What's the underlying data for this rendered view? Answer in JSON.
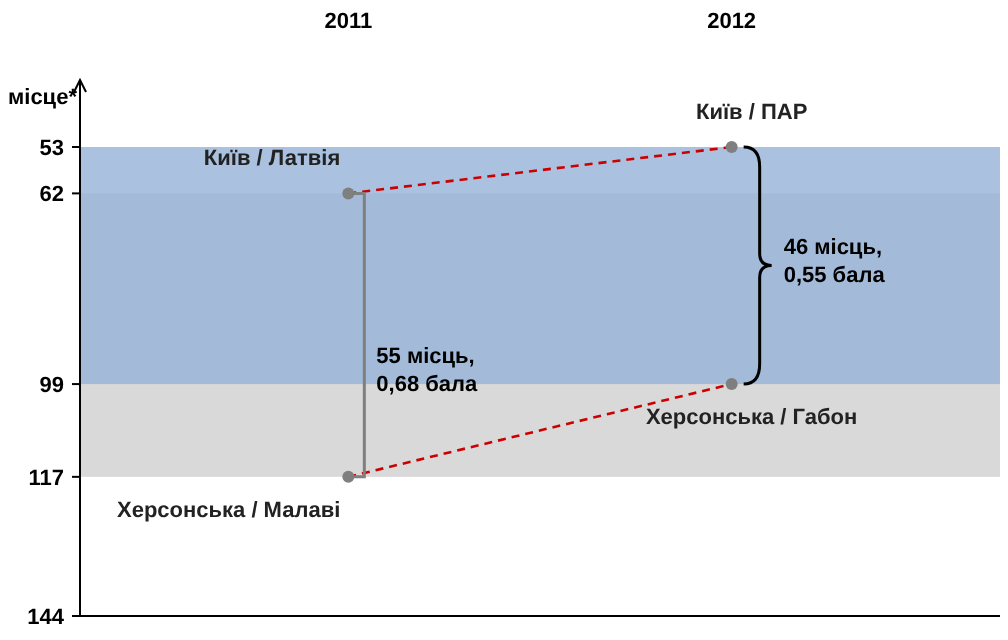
{
  "chart_data": {
    "type": "line",
    "ylabel": "місце*",
    "categories": [
      "2011",
      "2012"
    ],
    "series": [
      {
        "color": "#cc0000",
        "values": [
          62,
          53
        ]
      },
      {
        "color": "#cc0000",
        "values": [
          117,
          99
        ]
      }
    ],
    "ylim": [
      144,
      40
    ],
    "yticks": [
      53,
      62,
      99,
      117,
      144
    ],
    "marker": "circle",
    "line_style": "dashed",
    "grid": false,
    "bands": [
      {
        "axis": "y",
        "from": 62,
        "to": 117,
        "color": "#d9d9d9"
      },
      {
        "axis": "y",
        "from": 53,
        "to": 99,
        "color": "#95b3d7"
      }
    ],
    "annotations": [
      {
        "text": "Київ / Латвія",
        "x": "2011",
        "y": 62
      },
      {
        "text": "Херсонська / Малаві",
        "x": "2011",
        "y": 117
      },
      {
        "text": "Київ / ПАР",
        "x": "2012",
        "y": 53
      },
      {
        "text": "Херсонська / Габон",
        "x": "2012",
        "y": 99
      },
      "55 місць, 0,68 бала",
      "46 місць, 0,55 бала"
    ]
  }
}
